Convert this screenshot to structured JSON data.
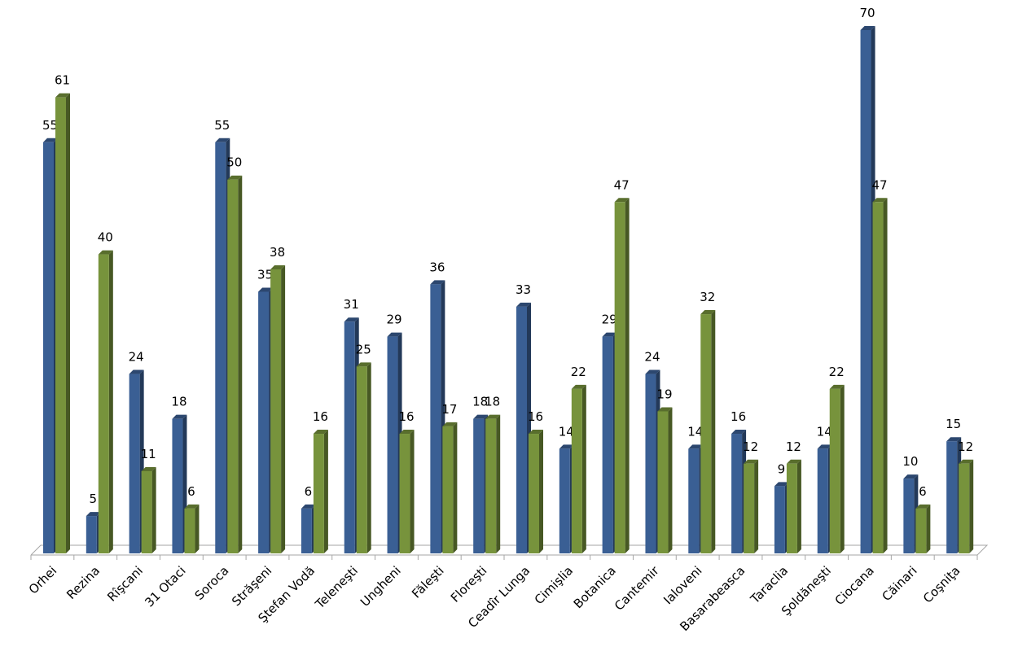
{
  "chart_data": {
    "type": "bar",
    "categories": [
      "Orhei",
      "Rezina",
      "Rîşcani",
      "31 Otaci",
      "Soroca",
      "Străşeni",
      "Ştefan Vodă",
      "Teleneşti",
      "Ungheni",
      "Făleşti",
      "Floreşti",
      "Ceadîr Lunga",
      "Cimişlia",
      "Botanica",
      "Cantemir",
      "Ialoveni",
      "Basarabeasca",
      "Taraclia",
      "Şoldăneşti",
      "Ciocana",
      "Căinari",
      "Coşniţa"
    ],
    "series": [
      {
        "color": "#3a5f94",
        "values": [
          55,
          5,
          24,
          18,
          55,
          35,
          6,
          31,
          29,
          36,
          18,
          33,
          14,
          29,
          24,
          14,
          16,
          9,
          14,
          70,
          10,
          15
        ]
      },
      {
        "color": "#77933c",
        "values": [
          61,
          40,
          11,
          6,
          50,
          38,
          16,
          25,
          16,
          17,
          18,
          16,
          22,
          47,
          19,
          32,
          12,
          12,
          22,
          47,
          6,
          12
        ]
      }
    ],
    "ylim": [
      0,
      70
    ]
  }
}
